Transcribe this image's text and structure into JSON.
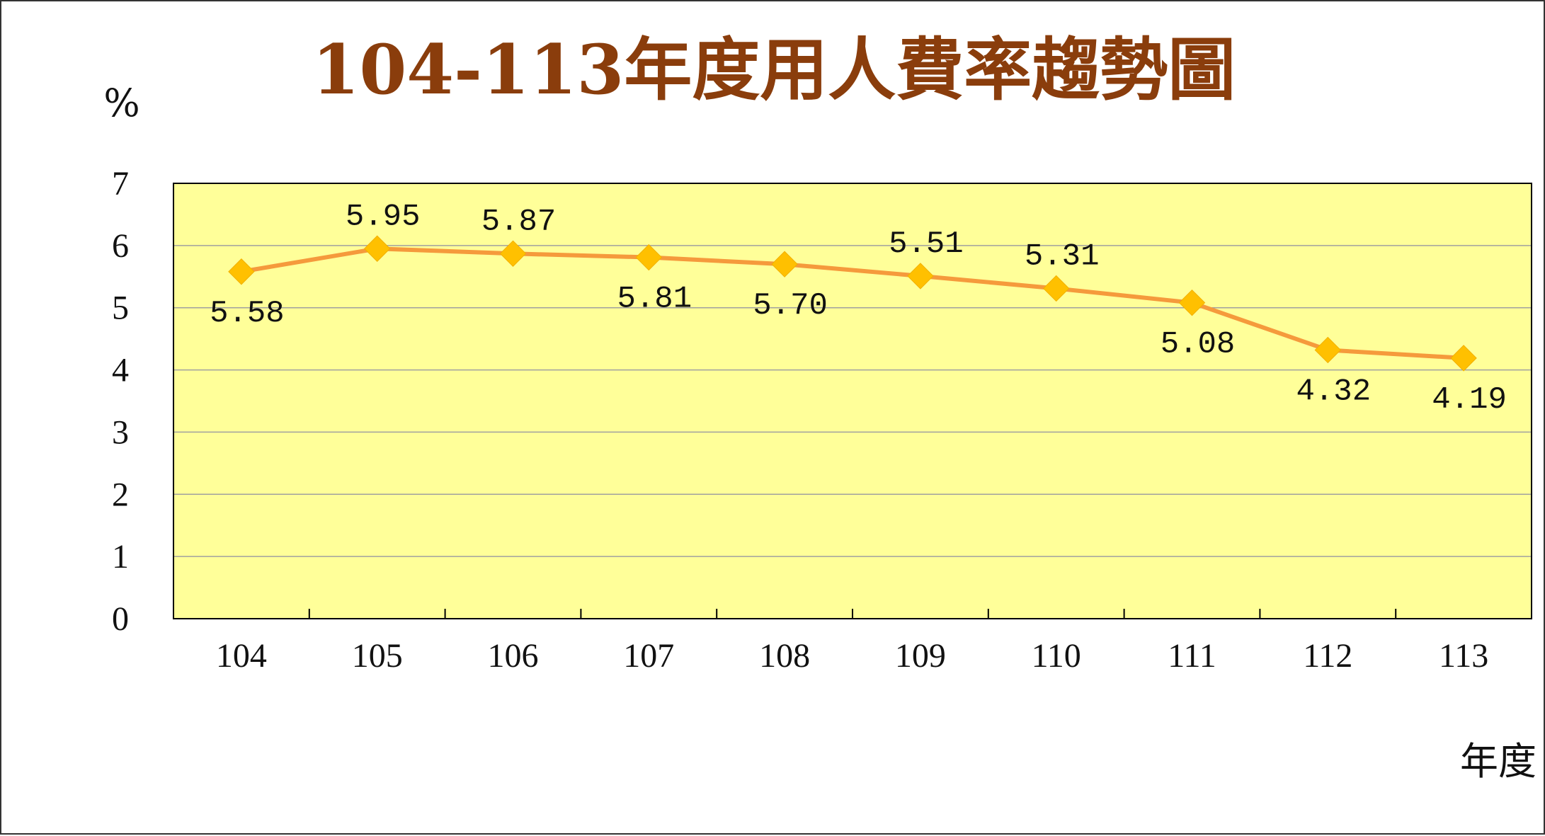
{
  "chart_data": {
    "type": "line",
    "title": "104-113年度用人費率趨勢圖",
    "ylabel": "%",
    "xlabel": "年度",
    "categories": [
      "104",
      "105",
      "106",
      "107",
      "108",
      "109",
      "110",
      "111",
      "112",
      "113"
    ],
    "series": [
      {
        "values": [
          5.58,
          5.95,
          5.87,
          5.81,
          5.7,
          5.51,
          5.31,
          5.08,
          4.32,
          4.19
        ]
      }
    ],
    "data_labels": [
      "5.58",
      "5.95",
      "5.87",
      "5.81",
      "5.70",
      "5.51",
      "5.31",
      "5.08",
      "4.32",
      "4.19"
    ],
    "ylim": [
      0,
      7
    ],
    "yticks": [
      "0",
      "1",
      "2",
      "3",
      "4",
      "5",
      "6",
      "7"
    ],
    "grid": true,
    "colors": {
      "plot_background": "#ffff99",
      "line": "#f59a3c",
      "marker": "#ffc000",
      "title": "#8a3d0c",
      "gridline": "#a0a0a0"
    }
  }
}
